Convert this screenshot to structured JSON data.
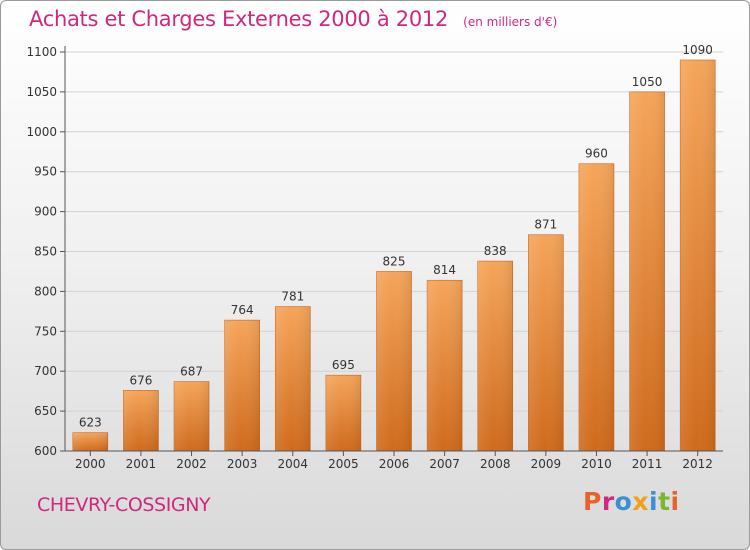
{
  "header": {
    "title": "Achats et Charges Externes 2000 à 2012",
    "unit_note": "(en milliers d'€)"
  },
  "footer": {
    "commune": "CHEVRY-COSSIGNY",
    "logo_text": "Proxiti",
    "logo_colors": [
      "#e8632b",
      "#d0287e",
      "#3a8fd6",
      "#f0a11c",
      "#3a8fd6",
      "#7cb82f",
      "#e8632b"
    ]
  },
  "colors": {
    "bar_top": "#f5a55a",
    "bar_bottom": "#cf6a1c",
    "title": "#d0287e"
  },
  "chart_data": {
    "type": "bar",
    "title": "Achats et Charges Externes 2000 à 2012",
    "subtitle": "(en milliers d'€)",
    "categories": [
      "2000",
      "2001",
      "2002",
      "2003",
      "2004",
      "2005",
      "2006",
      "2007",
      "2008",
      "2009",
      "2010",
      "2011",
      "2012"
    ],
    "values": [
      623,
      676,
      687,
      764,
      781,
      695,
      825,
      814,
      838,
      871,
      960,
      1050,
      1090
    ],
    "ylim": [
      600,
      1100
    ],
    "yticks": [
      600,
      650,
      700,
      750,
      800,
      850,
      900,
      950,
      1000,
      1050,
      1100
    ],
    "grid": true,
    "xlabel": "",
    "ylabel": ""
  }
}
